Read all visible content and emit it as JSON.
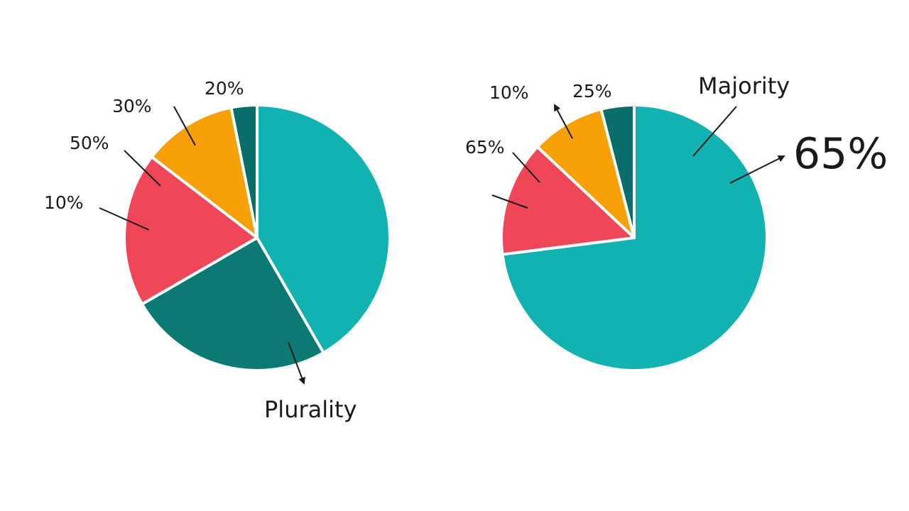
{
  "chart_data": [
    {
      "type": "pie",
      "title": "",
      "annotation": "Plurality",
      "labels": [
        "20%",
        "30%",
        "50%",
        "10%"
      ],
      "slices": [
        {
          "value": 40,
          "color": "#12b2b0"
        },
        {
          "value": 24,
          "color": "#0a7a72"
        },
        {
          "value": 18,
          "color": "#f04758"
        },
        {
          "value": 11,
          "color": "#f7a008"
        },
        {
          "value": 3,
          "color": "#0b6e6b"
        }
      ]
    },
    {
      "type": "pie",
      "title": "",
      "annotation": "Majority",
      "highlight": "65%",
      "labels": [
        "10%",
        "25%",
        "65%"
      ],
      "slices": [
        {
          "value": 73,
          "color": "#12b2b0"
        },
        {
          "value": 14,
          "color": "#f04758"
        },
        {
          "value": 9,
          "color": "#f7a008"
        },
        {
          "value": 4,
          "color": "#0b6e6b"
        }
      ]
    }
  ]
}
